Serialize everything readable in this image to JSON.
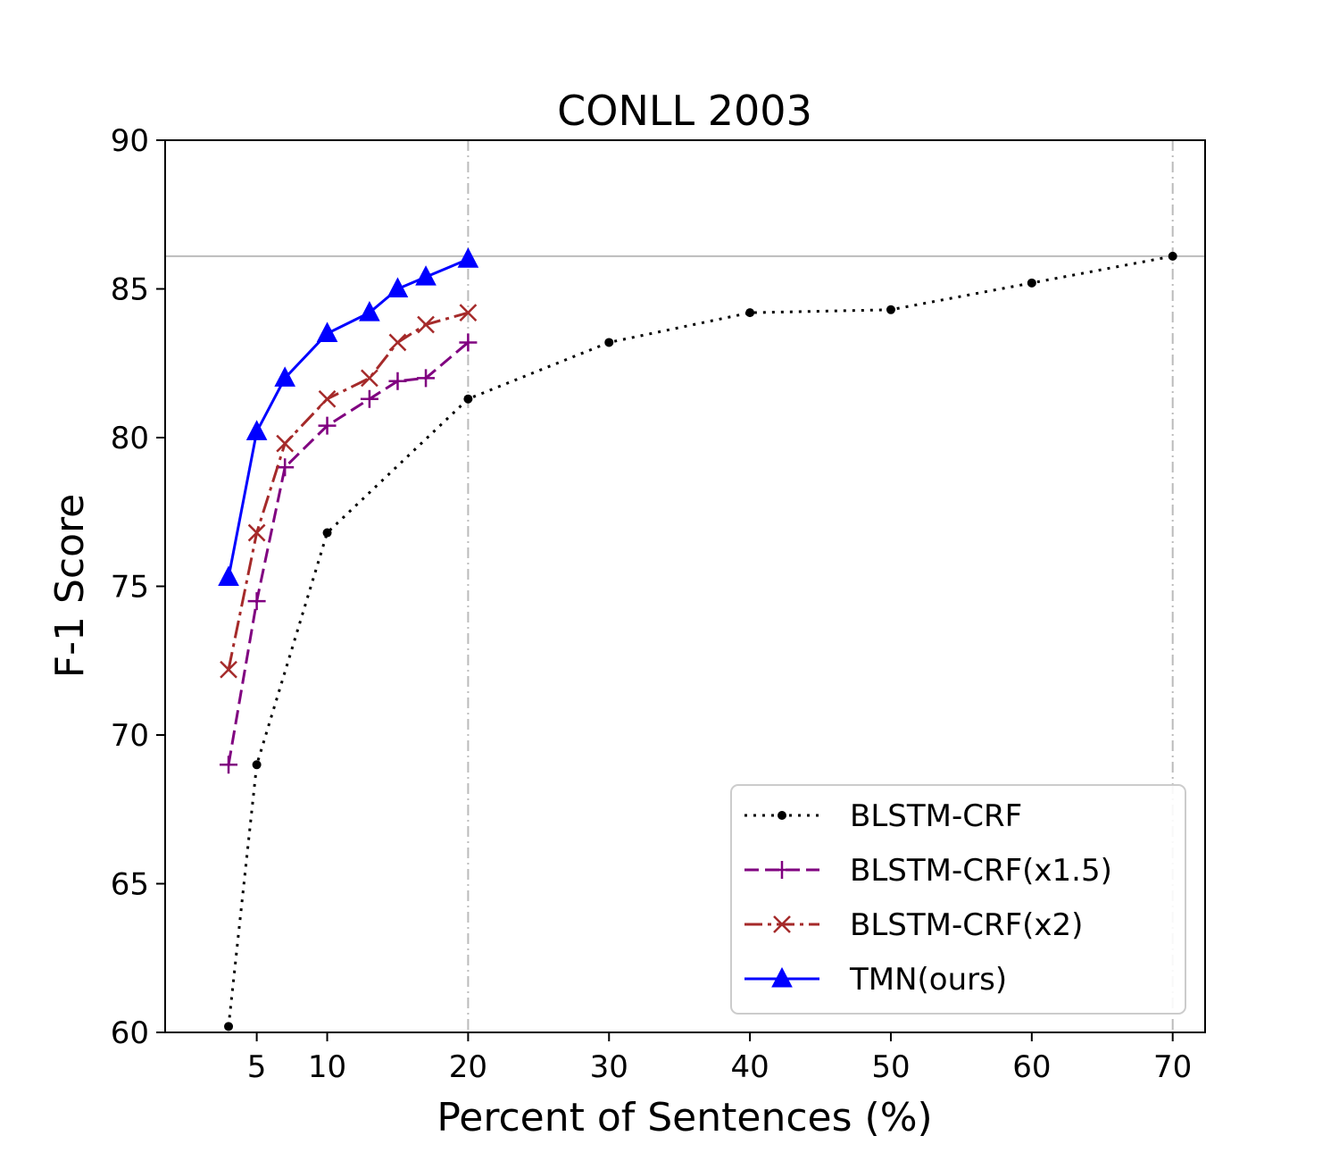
{
  "chart_data": {
    "type": "line",
    "title": "CONLL 2003",
    "xlabel": "Percent of Sentences (%)",
    "ylabel": "F-1 Score",
    "xlim": [
      -1.5,
      72.3
    ],
    "ylim": [
      60,
      90
    ],
    "xticks": [
      5,
      10,
      20,
      30,
      40,
      50,
      60,
      70
    ],
    "yticks": [
      60,
      65,
      70,
      75,
      80,
      85,
      90
    ],
    "vlines": [
      20,
      70
    ],
    "hline": 86.1,
    "legend_position": "lower-right",
    "series": [
      {
        "name": "BLSTM-CRF",
        "color": "#000000",
        "linestyle": "dotted",
        "marker": "dot",
        "x": [
          3,
          5,
          10,
          20,
          30,
          40,
          50,
          60,
          70
        ],
        "y": [
          60.2,
          69.0,
          76.8,
          81.3,
          83.2,
          84.2,
          84.3,
          85.2,
          86.1
        ]
      },
      {
        "name": "BLSTM-CRF(x1.5)",
        "color": "#800080",
        "linestyle": "dashed",
        "marker": "plus",
        "x": [
          3,
          5,
          7,
          10,
          13,
          15,
          17,
          20
        ],
        "y": [
          69.0,
          74.5,
          79.0,
          80.4,
          81.3,
          81.9,
          82.0,
          83.2
        ]
      },
      {
        "name": "BLSTM-CRF(x2)",
        "color": "#a52a2a",
        "linestyle": "dashdot",
        "marker": "x",
        "x": [
          3,
          5,
          7,
          10,
          13,
          15,
          17,
          20
        ],
        "y": [
          72.2,
          76.8,
          79.8,
          81.3,
          82.0,
          83.2,
          83.8,
          84.2
        ]
      },
      {
        "name": "TMN(ours)",
        "color": "#0000ff",
        "linestyle": "solid",
        "marker": "triangle",
        "x": [
          3,
          5,
          7,
          10,
          13,
          15,
          17,
          20
        ],
        "y": [
          75.3,
          80.2,
          82.0,
          83.5,
          84.2,
          85.0,
          85.4,
          86.0
        ]
      }
    ]
  }
}
